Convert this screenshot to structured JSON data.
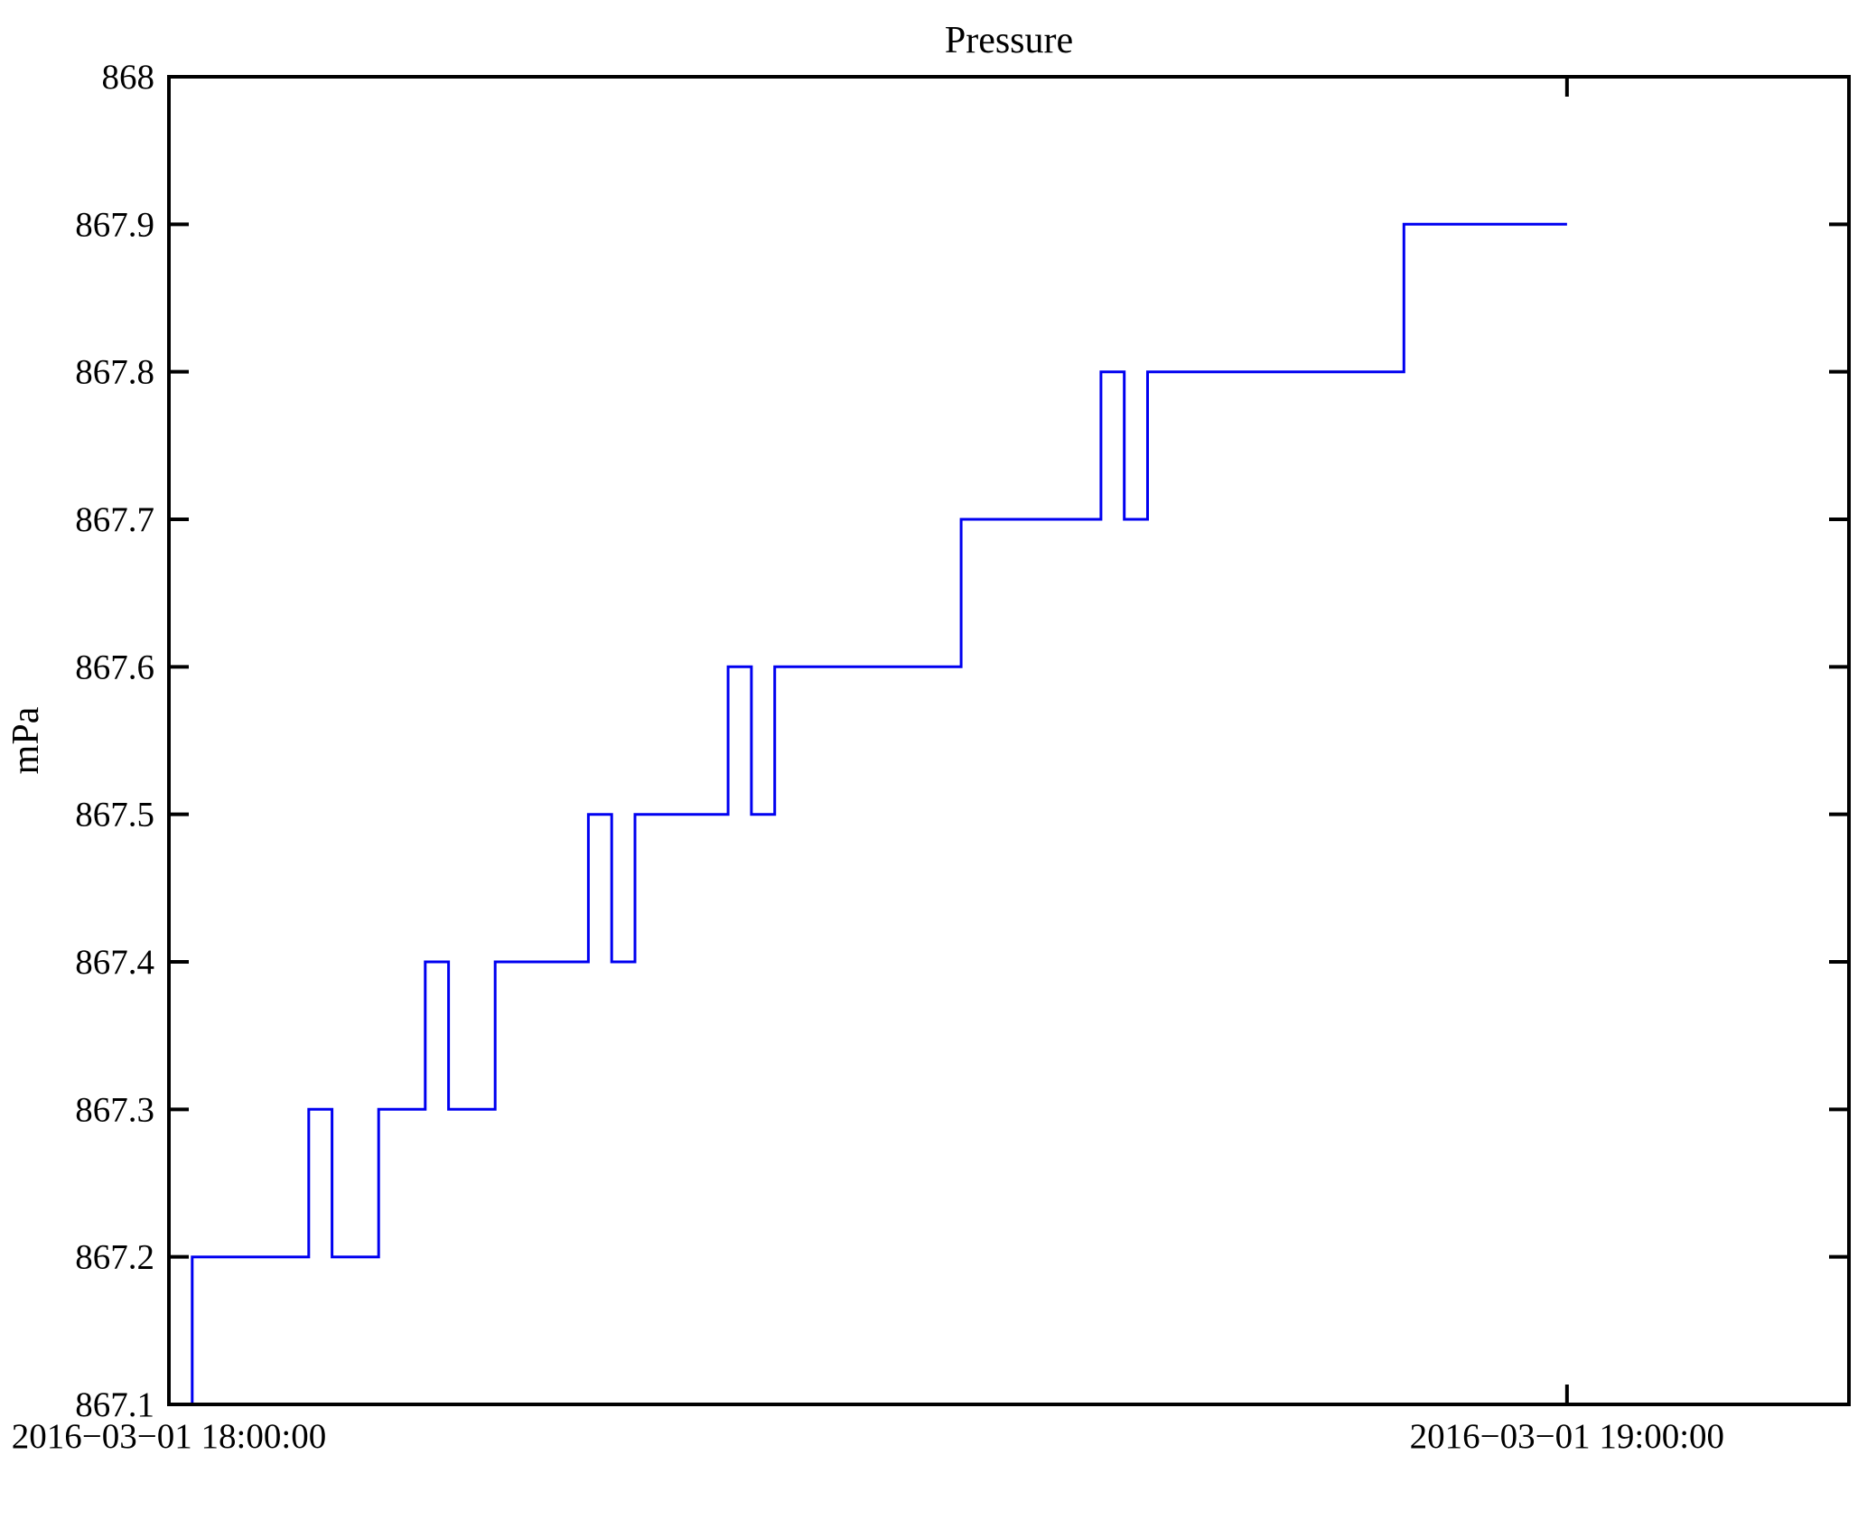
{
  "chart_data": {
    "type": "line",
    "line_style": "step",
    "title": "Pressure",
    "ylabel": "mPa",
    "xlabel": "",
    "grid": false,
    "legend": null,
    "line_color": "#0000F0",
    "axis_color": "#000000",
    "background_color": "#ffffff",
    "y_range": [
      867.1,
      868.0
    ],
    "x_range_minutes": [
      0,
      72.1
    ],
    "y_ticks": [
      {
        "value": 867.1,
        "label": "867.1"
      },
      {
        "value": 867.2,
        "label": "867.2"
      },
      {
        "value": 867.3,
        "label": "867.3"
      },
      {
        "value": 867.4,
        "label": "867.4"
      },
      {
        "value": 867.5,
        "label": "867.5"
      },
      {
        "value": 867.6,
        "label": "867.6"
      },
      {
        "value": 867.7,
        "label": "867.7"
      },
      {
        "value": 867.8,
        "label": "867.8"
      },
      {
        "value": 867.9,
        "label": "867.9"
      },
      {
        "value": 868.0,
        "label": "868"
      }
    ],
    "x_ticks": [
      {
        "minutes": 0,
        "label": "2016−03−01 18:00:00"
      },
      {
        "minutes": 60,
        "label": "2016−03−01 19:00:00"
      }
    ],
    "step_points_minutes_value": [
      [
        0,
        867.1
      ],
      [
        1,
        867.2
      ],
      [
        6,
        867.3
      ],
      [
        7,
        867.2
      ],
      [
        9,
        867.3
      ],
      [
        11,
        867.4
      ],
      [
        12,
        867.3
      ],
      [
        14,
        867.4
      ],
      [
        18,
        867.5
      ],
      [
        19,
        867.4
      ],
      [
        20,
        867.5
      ],
      [
        24,
        867.6
      ],
      [
        25,
        867.5
      ],
      [
        26,
        867.6
      ],
      [
        34,
        867.7
      ],
      [
        40,
        867.8
      ],
      [
        41,
        867.7
      ],
      [
        42,
        867.8
      ],
      [
        53,
        867.9
      ],
      [
        60,
        867.9
      ]
    ]
  }
}
